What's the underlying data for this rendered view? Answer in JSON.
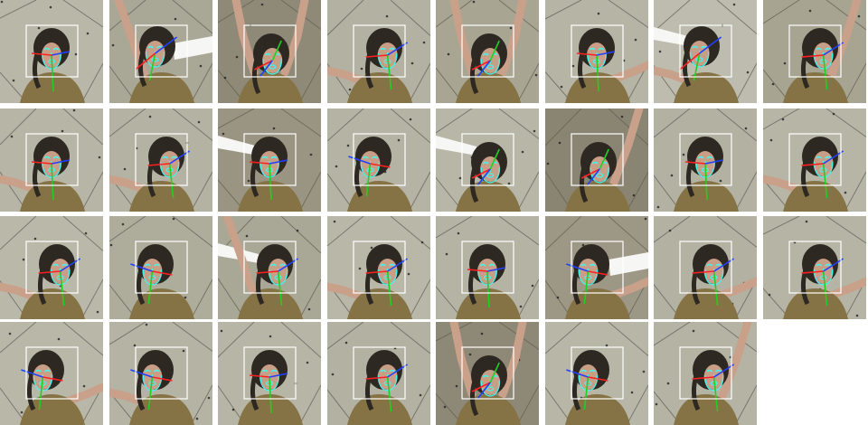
{
  "grid": {
    "rows": 4,
    "columns": 8,
    "tile_count": 31,
    "tiles": [
      {
        "id": 1,
        "bg": "#b9b8a8",
        "pose": "frontal",
        "arms": "none",
        "white_bar": false
      },
      {
        "id": 2,
        "bg": "#a9a796",
        "pose": "tilted-left",
        "arms": "up-left",
        "white_bar": true
      },
      {
        "id": 3,
        "bg": "#8f8a78",
        "pose": "down",
        "arms": "up-both",
        "white_bar": false
      },
      {
        "id": 4,
        "bg": "#b3b1a1",
        "pose": "right",
        "arms": "left",
        "white_bar": false
      },
      {
        "id": 5,
        "bg": "#a8a593",
        "pose": "down",
        "arms": "up-both",
        "white_bar": false
      },
      {
        "id": 6,
        "bg": "#b6b4a4",
        "pose": "frontal",
        "arms": "right",
        "white_bar": false
      },
      {
        "id": 7,
        "bg": "#bdbcae",
        "pose": "tilted-left",
        "arms": "left",
        "white_bar": true
      },
      {
        "id": 8,
        "bg": "#a7a492",
        "pose": "right",
        "arms": "up-right",
        "white_bar": false
      },
      {
        "id": 9,
        "bg": "#b7b6a6",
        "pose": "frontal",
        "arms": "left",
        "white_bar": false
      },
      {
        "id": 10,
        "bg": "#b4b2a2",
        "pose": "right",
        "arms": "left",
        "white_bar": false
      },
      {
        "id": 11,
        "bg": "#9a9583",
        "pose": "frontal",
        "arms": "none",
        "white_bar": true
      },
      {
        "id": 12,
        "bg": "#b5b3a3",
        "pose": "left",
        "arms": "none",
        "white_bar": false
      },
      {
        "id": 13,
        "bg": "#b8b7a7",
        "pose": "down",
        "arms": "none",
        "white_bar": true
      },
      {
        "id": 14,
        "bg": "#8a8573",
        "pose": "down",
        "arms": "up-right",
        "white_bar": false
      },
      {
        "id": 15,
        "bg": "#b3b1a1",
        "pose": "frontal",
        "arms": "none",
        "white_bar": false
      },
      {
        "id": 16,
        "bg": "#b7b6a6",
        "pose": "right",
        "arms": "left",
        "white_bar": false
      },
      {
        "id": 17,
        "bg": "#bab9a9",
        "pose": "right",
        "arms": "left",
        "white_bar": false
      },
      {
        "id": 18,
        "bg": "#aeac9b",
        "pose": "left",
        "arms": "none",
        "white_bar": false
      },
      {
        "id": 19,
        "bg": "#a9a795",
        "pose": "right",
        "arms": "up-left",
        "white_bar": true
      },
      {
        "id": 20,
        "bg": "#b9b8a8",
        "pose": "right",
        "arms": "left",
        "white_bar": false
      },
      {
        "id": 21,
        "bg": "#b5b3a3",
        "pose": "frontal",
        "arms": "none",
        "white_bar": false
      },
      {
        "id": 22,
        "bg": "#9d9886",
        "pose": "left",
        "arms": "right",
        "white_bar": true
      },
      {
        "id": 23,
        "bg": "#b3b1a1",
        "pose": "right",
        "arms": "right",
        "white_bar": false
      },
      {
        "id": 24,
        "bg": "#b6b5a5",
        "pose": "right",
        "arms": "right",
        "white_bar": false
      },
      {
        "id": 25,
        "bg": "#b9b8a8",
        "pose": "left",
        "arms": "right",
        "white_bar": false
      },
      {
        "id": 26,
        "bg": "#b5b3a3",
        "pose": "left",
        "arms": "left",
        "white_bar": false
      },
      {
        "id": 27,
        "bg": "#b7b6a6",
        "pose": "frontal",
        "arms": "none",
        "white_bar": false
      },
      {
        "id": 28,
        "bg": "#b3b1a1",
        "pose": "right",
        "arms": "none",
        "white_bar": false
      },
      {
        "id": 29,
        "bg": "#8e8977",
        "pose": "down",
        "arms": "up-both",
        "white_bar": false
      },
      {
        "id": 30,
        "bg": "#b8b7a7",
        "pose": "left",
        "arms": "none",
        "white_bar": false
      },
      {
        "id": 31,
        "bg": "#b5b3a3",
        "pose": "right",
        "arms": "up-right",
        "white_bar": false
      }
    ]
  },
  "colors": {
    "bbox": "#ffffff",
    "landmarks": "#3ff7f0",
    "axis_x": "#ff2020",
    "axis_y": "#20d020",
    "axis_z": "#2040ff",
    "hair": "#2e2823",
    "skin": "#c99e86",
    "dress": "#857345",
    "arm": "#c9a08a",
    "floor_line": "#5f5d53",
    "floor_dot": "#202020",
    "white_bar": "#f6f6f4"
  },
  "icons": {
    "tile": "head-pose-sample-icon"
  }
}
